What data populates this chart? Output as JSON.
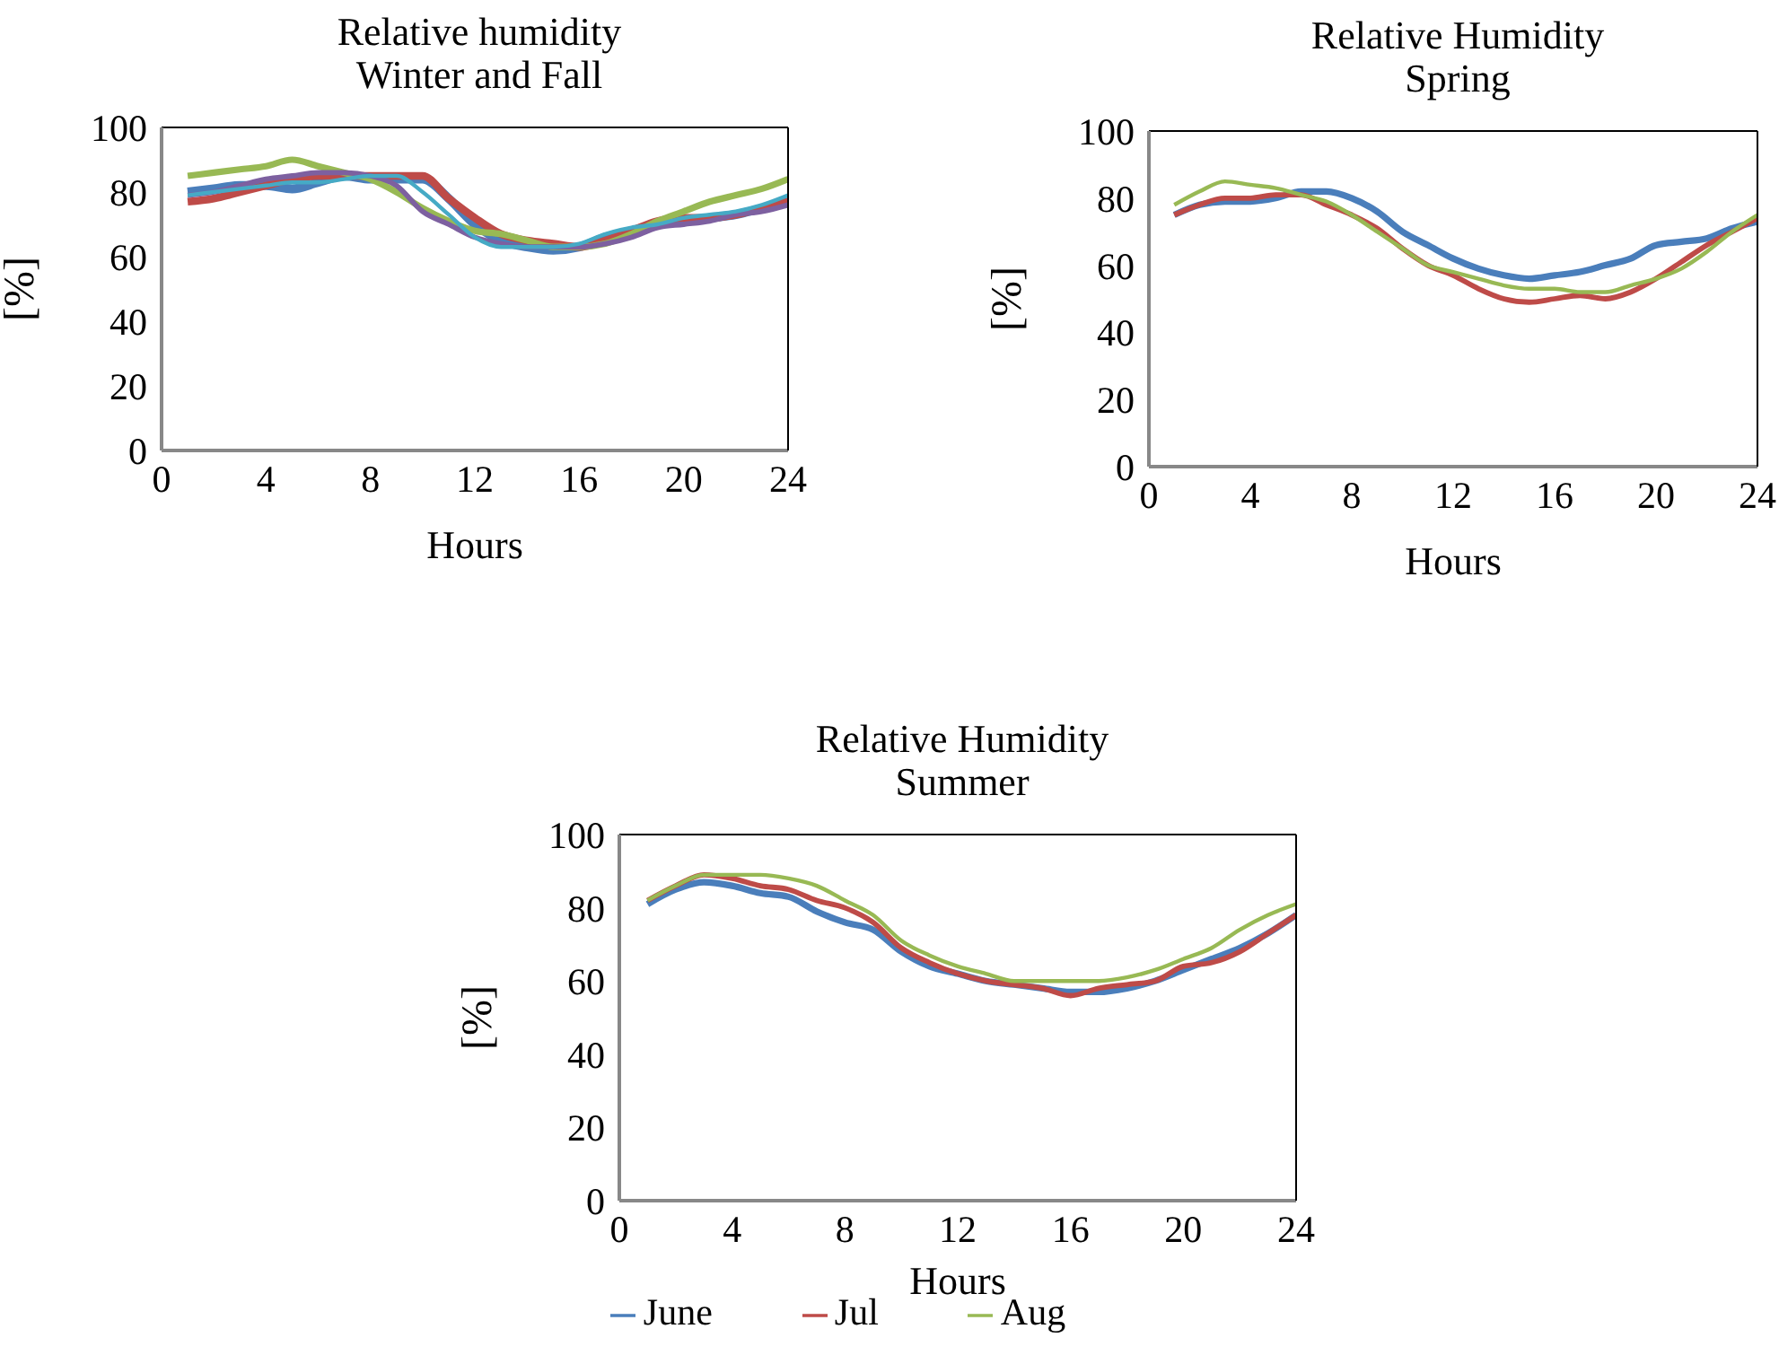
{
  "chart_data": [
    {
      "type": "line",
      "title": "Relative humidity",
      "subtitle": "Winter and Fall",
      "xlabel": "Hours",
      "ylabel": "[%]",
      "x": [
        1,
        2,
        3,
        4,
        5,
        6,
        7,
        8,
        9,
        10,
        11,
        12,
        13,
        14,
        15,
        16,
        17,
        18,
        19,
        20,
        21,
        22,
        23,
        24
      ],
      "xlim": [
        0,
        24
      ],
      "xticks": [
        0,
        4,
        8,
        12,
        16,
        20,
        24
      ],
      "ylim": [
        0,
        100
      ],
      "yticks": [
        0,
        20,
        40,
        60,
        80,
        100
      ],
      "grid": false,
      "legend": false,
      "marker": "none",
      "line_style": "solid",
      "series": [
        {
          "color": "#4a7ebb",
          "values": [
            80,
            81,
            82,
            82,
            81,
            83,
            85,
            84,
            84,
            84,
            78,
            70,
            65,
            63,
            62,
            63,
            66,
            68,
            70,
            71,
            72,
            73,
            75,
            77
          ]
        },
        {
          "color": "#be4b48",
          "values": [
            77,
            78,
            80,
            82,
            84,
            85,
            85,
            85,
            85,
            85,
            78,
            72,
            67,
            65,
            64,
            63,
            65,
            68,
            71,
            72,
            72,
            73,
            75,
            77
          ]
        },
        {
          "color": "#98b954",
          "values": [
            85,
            86,
            87,
            88,
            90,
            88,
            86,
            84,
            80,
            75,
            71,
            68,
            67,
            65,
            63,
            63,
            64,
            67,
            71,
            74,
            77,
            79,
            81,
            84
          ]
        },
        {
          "color": "#7d60a0",
          "values": [
            79,
            80,
            82,
            84,
            85,
            86,
            86,
            85,
            82,
            74,
            70,
            66,
            64,
            63,
            63,
            63,
            64,
            66,
            69,
            70,
            71,
            73,
            74,
            76
          ]
        },
        {
          "color": "#46aac5",
          "values": [
            79,
            80,
            81,
            82,
            83,
            83,
            84,
            85,
            85,
            80,
            73,
            66,
            63,
            63,
            63,
            64,
            67,
            69,
            70,
            72,
            73,
            74,
            76,
            79
          ]
        }
      ]
    },
    {
      "type": "line",
      "title": "Relative Humidity",
      "subtitle": "Spring",
      "xlabel": "Hours",
      "ylabel": "[%]",
      "x": [
        1,
        2,
        3,
        4,
        5,
        6,
        7,
        8,
        9,
        10,
        11,
        12,
        13,
        14,
        15,
        16,
        17,
        18,
        19,
        20,
        21,
        22,
        23,
        24
      ],
      "xlim": [
        0,
        24
      ],
      "xticks": [
        0,
        4,
        8,
        12,
        16,
        20,
        24
      ],
      "ylim": [
        0,
        100
      ],
      "yticks": [
        0,
        20,
        40,
        60,
        80,
        100
      ],
      "grid": false,
      "legend": false,
      "marker": "none",
      "line_style": "solid",
      "series": [
        {
          "color": "#4a7ebb",
          "values": [
            75,
            78,
            79,
            79,
            80,
            82,
            82,
            80,
            76,
            70,
            66,
            62,
            59,
            57,
            56,
            57,
            58,
            60,
            62,
            66,
            67,
            68,
            71,
            73
          ]
        },
        {
          "color": "#be4b48",
          "values": [
            75,
            78,
            80,
            80,
            81,
            81,
            78,
            75,
            71,
            65,
            60,
            57,
            53,
            50,
            49,
            50,
            51,
            50,
            52,
            56,
            61,
            66,
            70,
            74
          ]
        },
        {
          "color": "#98b954",
          "values": [
            78,
            82,
            85,
            84,
            83,
            81,
            79,
            75,
            70,
            65,
            60,
            58,
            56,
            54,
            53,
            53,
            52,
            52,
            54,
            56,
            59,
            64,
            70,
            75
          ]
        }
      ]
    },
    {
      "type": "line",
      "title": "Relative Humidity",
      "subtitle": "Summer",
      "xlabel": "Hours",
      "ylabel": "[%]",
      "x": [
        1,
        2,
        3,
        4,
        5,
        6,
        7,
        8,
        9,
        10,
        11,
        12,
        13,
        14,
        15,
        16,
        17,
        18,
        19,
        20,
        21,
        22,
        23,
        24
      ],
      "xlim": [
        0,
        24
      ],
      "xticks": [
        0,
        4,
        8,
        12,
        16,
        20,
        24
      ],
      "ylim": [
        0,
        100
      ],
      "yticks": [
        0,
        20,
        40,
        60,
        80,
        100
      ],
      "grid": false,
      "legend": "bottom",
      "marker": "none",
      "line_style": "solid",
      "series": [
        {
          "name": "June",
          "color": "#4a7ebb",
          "values": [
            81,
            85,
            87,
            86,
            84,
            83,
            79,
            76,
            74,
            68,
            64,
            62,
            60,
            59,
            58,
            57,
            57,
            58,
            60,
            63,
            66,
            69,
            73,
            78
          ]
        },
        {
          "name": "Jul",
          "color": "#be4b48",
          "values": [
            82,
            86,
            89,
            88,
            86,
            85,
            82,
            80,
            76,
            69,
            65,
            62,
            60,
            59,
            58,
            56,
            58,
            59,
            60,
            64,
            65,
            68,
            73,
            78
          ]
        },
        {
          "name": "Aug",
          "color": "#98b954",
          "values": [
            82,
            86,
            89,
            89,
            89,
            88,
            86,
            82,
            78,
            71,
            67,
            64,
            62,
            60,
            60,
            60,
            60,
            61,
            63,
            66,
            69,
            74,
            78,
            81
          ]
        }
      ]
    }
  ]
}
